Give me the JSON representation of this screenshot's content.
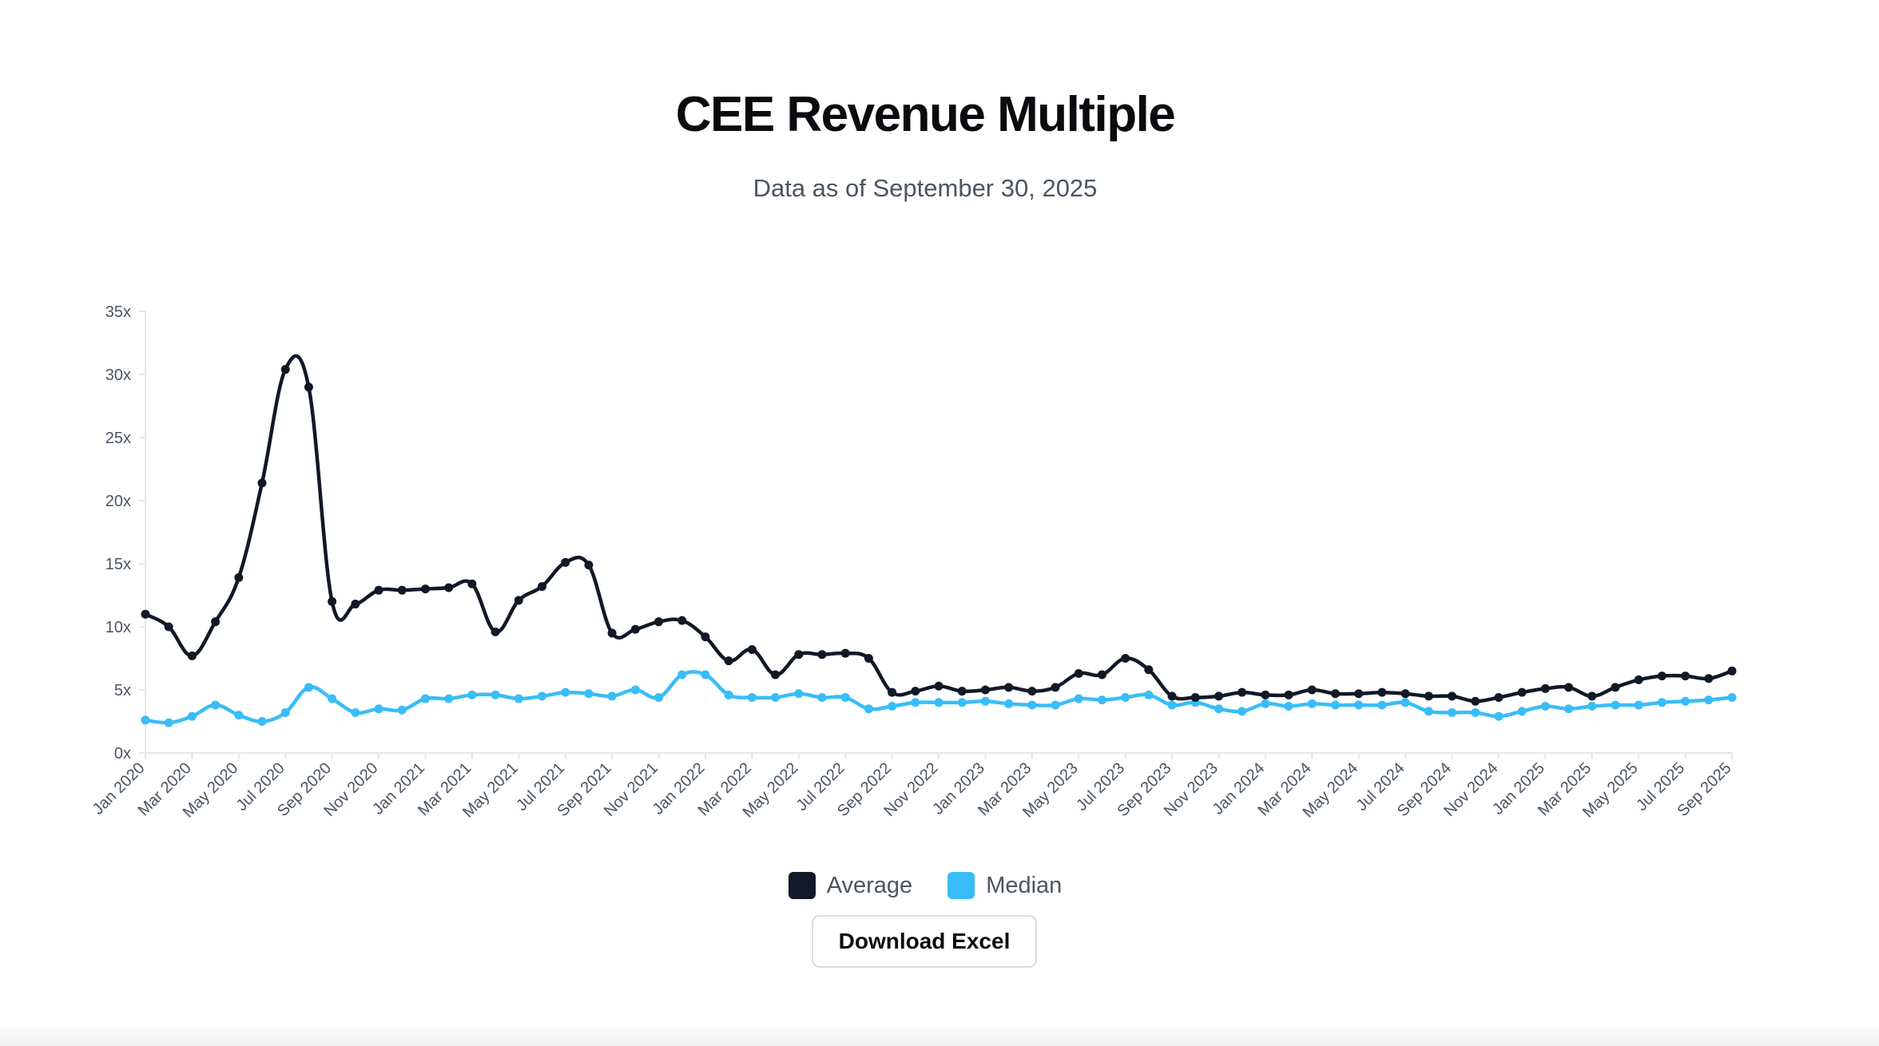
{
  "page": {
    "title": "CEE Revenue Multiple",
    "subtitle": "Data as of September 30, 2025",
    "download_label": "Download Excel"
  },
  "colors": {
    "average": "#111827",
    "median": "#38bdf8",
    "axis": "#e5e7eb",
    "tick_text": "#4b5563"
  },
  "chart_data": {
    "type": "line",
    "title": "CEE Revenue Multiple",
    "subtitle": "Data as of September 30, 2025",
    "xlabel": "",
    "ylabel": "",
    "ylim": [
      0,
      35
    ],
    "yticks": [
      0,
      5,
      10,
      15,
      20,
      25,
      30,
      35
    ],
    "ytick_labels": [
      "0x",
      "5x",
      "10x",
      "15x",
      "20x",
      "25x",
      "30x",
      "35x"
    ],
    "grid": false,
    "legend_position": "bottom-center",
    "x": [
      "Jan 2020",
      "Feb 2020",
      "Mar 2020",
      "Apr 2020",
      "May 2020",
      "Jun 2020",
      "Jul 2020",
      "Aug 2020",
      "Sep 2020",
      "Oct 2020",
      "Nov 2020",
      "Dec 2020",
      "Jan 2021",
      "Feb 2021",
      "Mar 2021",
      "Apr 2021",
      "May 2021",
      "Jun 2021",
      "Jul 2021",
      "Aug 2021",
      "Sep 2021",
      "Oct 2021",
      "Nov 2021",
      "Dec 2021",
      "Jan 2022",
      "Feb 2022",
      "Mar 2022",
      "Apr 2022",
      "May 2022",
      "Jun 2022",
      "Jul 2022",
      "Aug 2022",
      "Sep 2022",
      "Oct 2022",
      "Nov 2022",
      "Dec 2022",
      "Jan 2023",
      "Feb 2023",
      "Mar 2023",
      "Apr 2023",
      "May 2023",
      "Jun 2023",
      "Jul 2023",
      "Aug 2023",
      "Sep 2023",
      "Oct 2023",
      "Nov 2023",
      "Dec 2023",
      "Jan 2024",
      "Feb 2024",
      "Mar 2024",
      "Apr 2024",
      "May 2024",
      "Jun 2024",
      "Jul 2024",
      "Aug 2024",
      "Sep 2024",
      "Oct 2024",
      "Nov 2024",
      "Dec 2024",
      "Jan 2025",
      "Feb 2025",
      "Mar 2025",
      "Apr 2025",
      "May 2025",
      "Jun 2025",
      "Jul 2025",
      "Aug 2025",
      "Sep 2025"
    ],
    "xtick_labels": [
      "Jan 2020",
      "Mar 2020",
      "May 2020",
      "Jul 2020",
      "Sep 2020",
      "Nov 2020",
      "Jan 2021",
      "Mar 2021",
      "May 2021",
      "Jul 2021",
      "Sep 2021",
      "Nov 2021",
      "Jan 2022",
      "Mar 2022",
      "May 2022",
      "Jul 2022",
      "Sep 2022",
      "Nov 2022",
      "Jan 2023",
      "Mar 2023",
      "May 2023",
      "Jul 2023",
      "Sep 2023",
      "Nov 2023",
      "Jan 2024",
      "Mar 2024",
      "May 2024",
      "Jul 2024",
      "Sep 2024",
      "Nov 2024",
      "Jan 2025",
      "Mar 2025",
      "May 2025",
      "Jul 2025",
      "Sep 2025"
    ],
    "series": [
      {
        "name": "Average",
        "values": [
          11.0,
          10.0,
          7.7,
          10.4,
          13.9,
          21.4,
          30.4,
          29.0,
          12.0,
          11.8,
          12.9,
          12.9,
          13.0,
          13.1,
          13.4,
          9.6,
          12.1,
          13.2,
          15.1,
          14.9,
          9.5,
          9.8,
          10.4,
          10.5,
          9.2,
          7.3,
          8.2,
          6.2,
          7.8,
          7.8,
          7.9,
          7.5,
          4.8,
          4.9,
          5.3,
          4.9,
          5.0,
          5.2,
          4.9,
          5.2,
          6.3,
          6.2,
          7.5,
          6.6,
          4.5,
          4.4,
          4.5,
          4.8,
          4.6,
          4.6,
          5.0,
          4.7,
          4.7,
          4.8,
          4.7,
          4.5,
          4.5,
          4.1,
          4.4,
          4.8,
          5.1,
          5.2,
          4.5,
          5.2,
          5.8,
          6.1,
          6.1,
          5.9,
          6.5
        ]
      },
      {
        "name": "Median",
        "values": [
          2.6,
          2.4,
          2.9,
          3.8,
          3.0,
          2.5,
          3.2,
          5.2,
          4.3,
          3.2,
          3.5,
          3.4,
          4.3,
          4.3,
          4.6,
          4.6,
          4.3,
          4.5,
          4.8,
          4.7,
          4.5,
          5.0,
          4.4,
          6.2,
          6.2,
          4.6,
          4.4,
          4.4,
          4.7,
          4.4,
          4.4,
          3.5,
          3.7,
          4.0,
          4.0,
          4.0,
          4.1,
          3.9,
          3.8,
          3.8,
          4.3,
          4.2,
          4.4,
          4.6,
          3.8,
          4.0,
          3.5,
          3.3,
          3.9,
          3.7,
          3.9,
          3.8,
          3.8,
          3.8,
          4.0,
          3.3,
          3.2,
          3.2,
          2.9,
          3.3,
          3.7,
          3.5,
          3.7,
          3.8,
          3.8,
          4.0,
          4.1,
          4.2,
          4.4
        ]
      }
    ]
  }
}
